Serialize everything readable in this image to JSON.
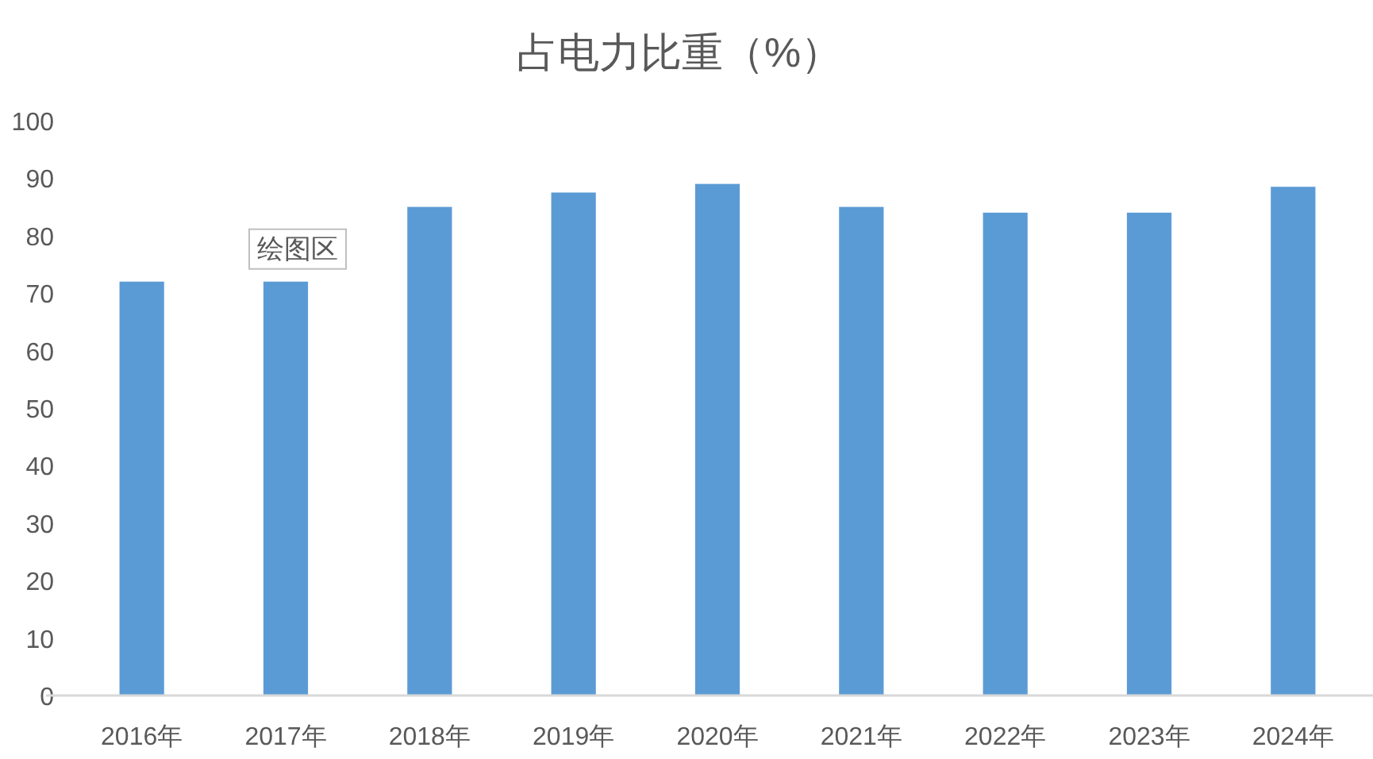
{
  "chart_data": {
    "type": "bar",
    "title": "占电力比重（%）",
    "categories": [
      "2016年",
      "2017年",
      "2018年",
      "2019年",
      "2020年",
      "2021年",
      "2022年",
      "2023年",
      "2024年"
    ],
    "values": [
      72,
      72,
      85,
      87.5,
      89,
      85,
      84,
      84,
      88.5
    ],
    "color": "#5b9bd5",
    "ylim": [
      0,
      100
    ],
    "yticks": [
      0,
      10,
      20,
      30,
      40,
      50,
      60,
      70,
      80,
      90,
      100
    ],
    "annotations": [
      "绘图区"
    ]
  }
}
